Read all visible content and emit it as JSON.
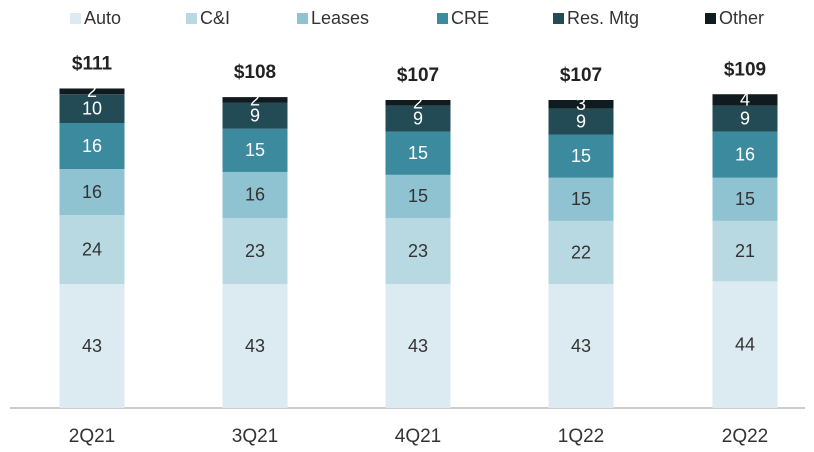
{
  "chart_data": {
    "type": "stacked_bar",
    "categories": [
      "2Q21",
      "3Q21",
      "4Q21",
      "1Q22",
      "2Q22"
    ],
    "series": [
      {
        "name": "Auto",
        "color": "#dcebf1",
        "values": [
          43,
          43,
          43,
          43,
          44
        ]
      },
      {
        "name": "C&I",
        "color": "#b8d9e2",
        "values": [
          24,
          23,
          23,
          22,
          21
        ]
      },
      {
        "name": "Leases",
        "color": "#8fc3d1",
        "values": [
          16,
          16,
          15,
          15,
          15
        ]
      },
      {
        "name": "CRE",
        "color": "#3b8a9d",
        "values": [
          16,
          15,
          15,
          15,
          16
        ]
      },
      {
        "name": "Res. Mtg",
        "color": "#234b55",
        "values": [
          10,
          9,
          9,
          9,
          9
        ]
      },
      {
        "name": "Other",
        "color": "#0f1b1f",
        "values": [
          2,
          2,
          2,
          3,
          4
        ]
      }
    ],
    "totals": {
      "values": [
        111,
        108,
        107,
        107,
        109
      ],
      "value_labels": [
        "$111",
        "$108",
        "$107",
        "$107",
        "$109"
      ]
    },
    "ylim": [
      0,
      140
    ],
    "legend": "top"
  }
}
